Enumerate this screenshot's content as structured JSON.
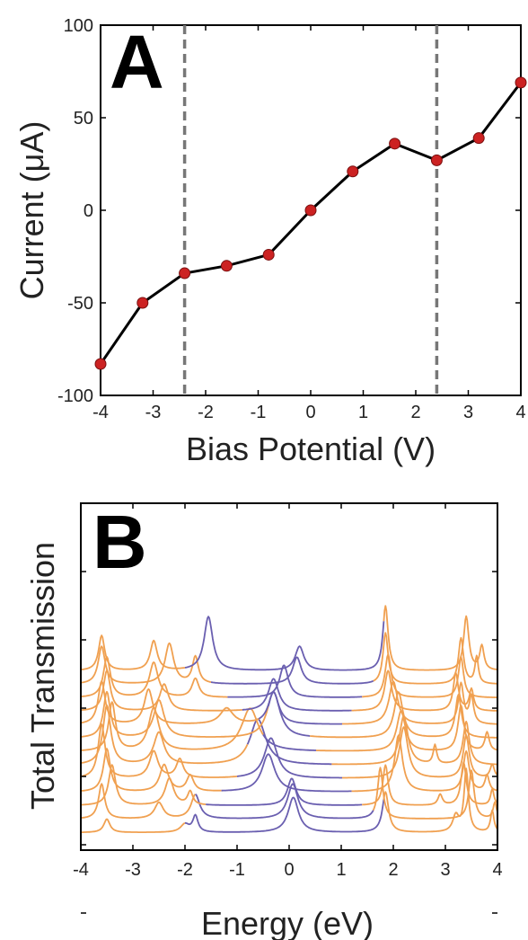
{
  "chart_data": [
    {
      "type": "line",
      "panel_label": "A",
      "xlabel": "Bias Potential (V)",
      "ylabel": "Current (μA)",
      "xlim": [
        -4,
        4
      ],
      "ylim": [
        -100,
        100
      ],
      "x_ticks": [
        "-4",
        "-3",
        "-2",
        "-1",
        "0",
        "1",
        "2",
        "3",
        "4"
      ],
      "y_ticks": [
        "100",
        "50",
        "0",
        "-50",
        "-100"
      ],
      "grid": false,
      "series": [
        {
          "x": [
            -4.0,
            -3.2,
            -2.4,
            -1.6,
            -0.8,
            0.0,
            0.8,
            1.6,
            2.4,
            3.2,
            4.0
          ],
          "y": [
            -83,
            -50,
            -34,
            -30,
            -24,
            0,
            21,
            36,
            27,
            39,
            69
          ],
          "line_color": "#000000",
          "marker_color": "#cc2222"
        }
      ],
      "vlines": [
        -2.4,
        2.4
      ],
      "vline_color": "#777777"
    },
    {
      "type": "line",
      "panel_label": "B",
      "xlabel": "Energy (eV)",
      "ylabel": "Total Transmission",
      "xlim": [
        -4,
        4
      ],
      "x_ticks": [
        "-4",
        "-3",
        "-2",
        "-1",
        "0",
        "1",
        "2",
        "3",
        "4"
      ],
      "curve_colors": {
        "outside_bias_window": "#f0a050",
        "inside_bias_window": "#6a5fb0"
      },
      "curves": [
        {
          "bias_window": [
            -2.0,
            1.8
          ],
          "offset": 0.0,
          "peaks": [
            [
              -3.5,
              0.5,
              0.07
            ],
            [
              -2.0,
              0.3,
              0.1
            ],
            [
              -1.8,
              0.6,
              0.06
            ],
            [
              0.08,
              1.3,
              0.12
            ],
            [
              1.85,
              1.5,
              0.07
            ],
            [
              3.2,
              0.6,
              0.07
            ],
            [
              3.4,
              2.3,
              0.05
            ],
            [
              3.9,
              0.8,
              0.04
            ]
          ]
        },
        {
          "bias_window": [
            -1.8,
            1.6
          ],
          "offset": 0.5,
          "peaks": [
            [
              -3.6,
              1.3,
              0.07
            ],
            [
              -2.5,
              0.6,
              0.1
            ],
            [
              -1.8,
              0.9,
              0.1
            ],
            [
              0.07,
              1.3,
              0.12
            ],
            [
              1.75,
              1.9,
              0.06
            ],
            [
              3.5,
              1.8,
              0.06
            ],
            [
              3.95,
              0.6,
              0.04
            ]
          ]
        },
        {
          "bias_window": [
            -1.6,
            1.4
          ],
          "offset": 1.0,
          "peaks": [
            [
              -3.4,
              1.5,
              0.08
            ],
            [
              -2.3,
              1.0,
              0.1
            ],
            [
              -1.9,
              0.5,
              0.06
            ],
            [
              0.05,
              1.0,
              0.1
            ],
            [
              1.85,
              1.5,
              0.06
            ],
            [
              2.9,
              0.4,
              0.05
            ],
            [
              3.35,
              1.6,
              0.06
            ],
            [
              3.9,
              0.6,
              0.04
            ]
          ]
        },
        {
          "bias_window": [
            -1.3,
            1.2
          ],
          "offset": 1.5,
          "peaks": [
            [
              -3.5,
              1.6,
              0.08
            ],
            [
              -2.4,
              1.0,
              0.1
            ],
            [
              -1.9,
              0.6,
              0.08
            ],
            [
              -0.4,
              1.4,
              0.15
            ],
            [
              2.1,
              2.1,
              0.09
            ],
            [
              3.4,
              1.5,
              0.07
            ],
            [
              3.8,
              0.6,
              0.05
            ]
          ]
        },
        {
          "bias_window": [
            -1.0,
            1.0
          ],
          "offset": 2.0,
          "peaks": [
            [
              -3.6,
              2.0,
              0.08
            ],
            [
              -2.6,
              1.0,
              0.1
            ],
            [
              -2.1,
              0.7,
              0.08
            ],
            [
              -0.35,
              1.5,
              0.15
            ],
            [
              2.2,
              1.9,
              0.1
            ],
            [
              3.4,
              1.6,
              0.07
            ],
            [
              3.9,
              0.5,
              0.05
            ]
          ]
        },
        {
          "bias_window": [
            -0.8,
            0.8
          ],
          "offset": 2.5,
          "peaks": [
            [
              -3.5,
              2.2,
              0.09
            ],
            [
              -2.5,
              1.2,
              0.12
            ],
            [
              -0.6,
              1.7,
              0.18
            ],
            [
              2.2,
              1.8,
              0.1
            ],
            [
              2.8,
              0.7,
              0.04
            ],
            [
              3.4,
              1.6,
              0.07
            ]
          ]
        },
        {
          "bias_window": [
            -0.5,
            0.5
          ],
          "offset": 3.0,
          "peaks": [
            [
              -3.4,
              1.8,
              0.08
            ],
            [
              -2.6,
              1.6,
              0.12
            ],
            [
              -0.75,
              1.6,
              0.2
            ],
            [
              2.15,
              1.5,
              0.1
            ],
            [
              3.3,
              1.7,
              0.07
            ],
            [
              3.8,
              0.7,
              0.05
            ]
          ]
        },
        {
          "bias_window": [
            -0.4,
            0.4
          ],
          "offset": 3.5,
          "peaks": [
            [
              -3.5,
              1.7,
              0.08
            ],
            [
              -2.5,
              1.4,
              0.12
            ],
            [
              -0.3,
              1.7,
              0.15
            ],
            [
              2.1,
              1.7,
              0.1
            ],
            [
              3.25,
              1.6,
              0.07
            ]
          ]
        },
        {
          "bias_window": [
            -0.6,
            1.0
          ],
          "offset": 4.0,
          "peaks": [
            [
              -3.6,
              1.6,
              0.08
            ],
            [
              -2.7,
              1.3,
              0.1
            ],
            [
              -1.2,
              0.6,
              0.15
            ],
            [
              -0.3,
              1.2,
              0.12
            ],
            [
              2.0,
              1.6,
              0.1
            ],
            [
              3.3,
              1.5,
              0.06
            ],
            [
              3.5,
              1.0,
              0.05
            ]
          ]
        },
        {
          "bias_window": [
            -0.9,
            1.2
          ],
          "offset": 4.5,
          "peaks": [
            [
              -3.5,
              1.5,
              0.08
            ],
            [
              -2.4,
              1.0,
              0.1
            ],
            [
              -0.3,
              1.2,
              0.12
            ],
            [
              1.9,
              1.5,
              0.08
            ],
            [
              3.2,
              1.4,
              0.06
            ],
            [
              3.5,
              0.8,
              0.05
            ]
          ]
        },
        {
          "bias_window": [
            -1.2,
            1.4
          ],
          "offset": 5.0,
          "peaks": [
            [
              -3.5,
              1.5,
              0.08
            ],
            [
              -2.6,
              1.3,
              0.1
            ],
            [
              -1.8,
              0.7,
              0.08
            ],
            [
              -0.1,
              1.2,
              0.1
            ],
            [
              1.9,
              1.6,
              0.07
            ],
            [
              3.3,
              1.5,
              0.06
            ]
          ]
        },
        {
          "bias_window": [
            -1.5,
            1.6
          ],
          "offset": 5.5,
          "peaks": [
            [
              -3.6,
              1.4,
              0.08
            ],
            [
              -2.3,
              1.5,
              0.1
            ],
            [
              -1.8,
              1.0,
              0.07
            ],
            [
              0.15,
              1.0,
              0.1
            ],
            [
              1.85,
              1.9,
              0.06
            ],
            [
              3.3,
              1.7,
              0.06
            ],
            [
              3.6,
              1.0,
              0.04
            ]
          ]
        },
        {
          "bias_window": [
            -2.0,
            1.8
          ],
          "offset": 6.0,
          "peaks": [
            [
              -3.6,
              1.3,
              0.07
            ],
            [
              -2.6,
              1.1,
              0.08
            ],
            [
              -1.55,
              2.0,
              0.1
            ],
            [
              0.2,
              0.9,
              0.1
            ],
            [
              1.85,
              2.4,
              0.06
            ],
            [
              3.4,
              2.0,
              0.06
            ],
            [
              3.7,
              0.9,
              0.05
            ]
          ]
        }
      ]
    }
  ]
}
